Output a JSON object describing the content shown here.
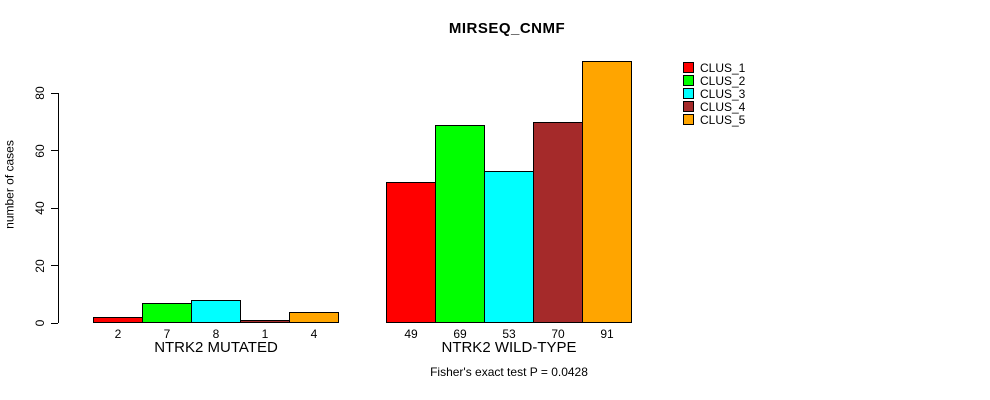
{
  "chart_data": {
    "type": "bar",
    "title": "MIRSEQ_CNMF",
    "ylabel": "number of cases",
    "xlabel": "",
    "categories": [
      "NTRK2 MUTATED",
      "NTRK2 WILD-TYPE"
    ],
    "series": [
      {
        "name": "CLUS_1",
        "color": "#FF0000",
        "values": [
          2,
          49
        ]
      },
      {
        "name": "CLUS_2",
        "color": "#00FF00",
        "values": [
          7,
          69
        ]
      },
      {
        "name": "CLUS_3",
        "color": "#00FFFF",
        "values": [
          8,
          53
        ]
      },
      {
        "name": "CLUS_4",
        "color": "#A52A2A",
        "values": [
          1,
          70
        ]
      },
      {
        "name": "CLUS_5",
        "color": "#FFA500",
        "values": [
          4,
          91
        ]
      }
    ],
    "yticks": [
      0,
      20,
      40,
      60,
      80
    ],
    "ylim": [
      0,
      91
    ],
    "grid": false,
    "bar_value_labels": true,
    "legend_position": "right-top",
    "bar_border_color": "#000000",
    "caption": "Fisher's exact test P = 0.0428"
  }
}
